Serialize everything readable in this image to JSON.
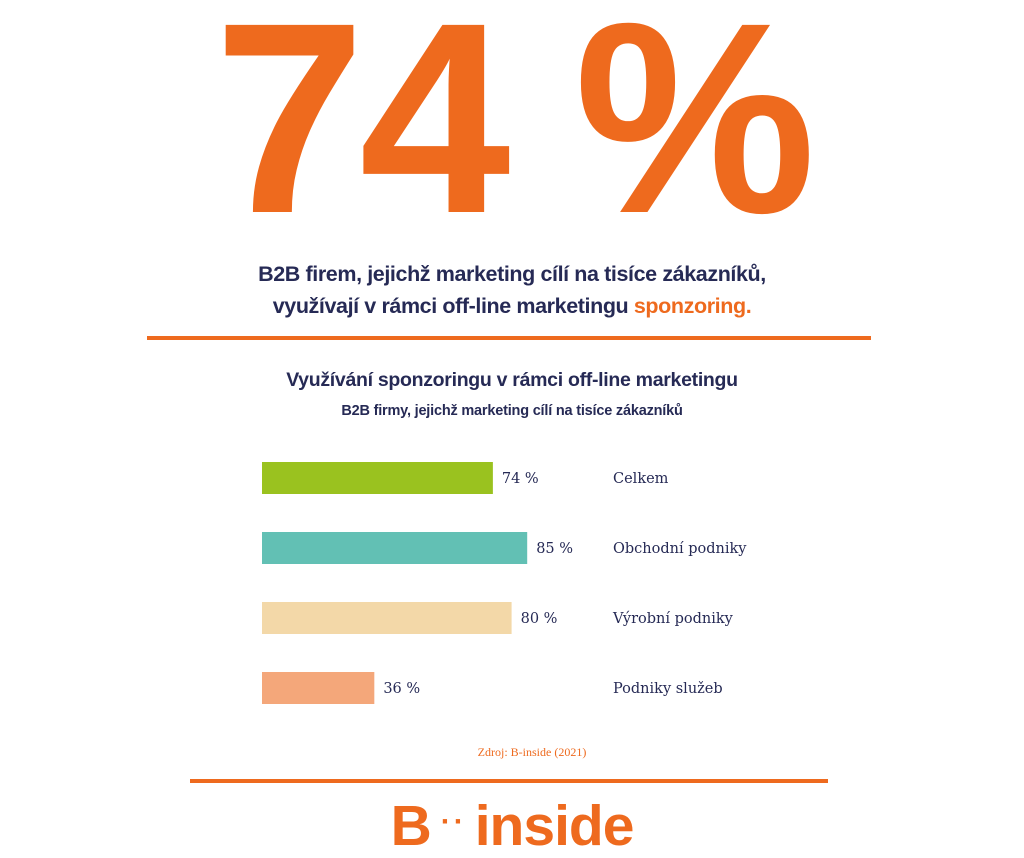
{
  "big_stat": "74 %",
  "headline": {
    "line1": "B2B firem, jejichž marketing cílí na tisíce zákazníků,",
    "line2_text": "využívají v rámci off-line marketingu ",
    "line2_accent": "sponzoring."
  },
  "chart_data": {
    "type": "bar",
    "orientation": "horizontal",
    "title": "Využívání sponzoringu v rámci off-line marketingu",
    "subtitle": "B2B firmy, jejichž marketing cílí na tisíce zákazníků",
    "categories": [
      "Celkem",
      "Obchodní podniky",
      "Výrobní podniky",
      "Podniky služeb"
    ],
    "values": [
      74,
      85,
      80,
      36
    ],
    "value_labels": [
      "74 %",
      "85 %",
      "80 %",
      "36 %"
    ],
    "colors": [
      "#9ac21f",
      "#62c0b4",
      "#f3d8a8",
      "#f4a77a"
    ],
    "xlim": [
      0,
      100
    ],
    "grid": false,
    "legend": "none"
  },
  "source": "Zdroj: B-inside (2021)",
  "logo": {
    "left": "B",
    "dots": "··",
    "right": "inside"
  },
  "colors": {
    "accent": "#ee6a1e",
    "text": "#262a55"
  }
}
